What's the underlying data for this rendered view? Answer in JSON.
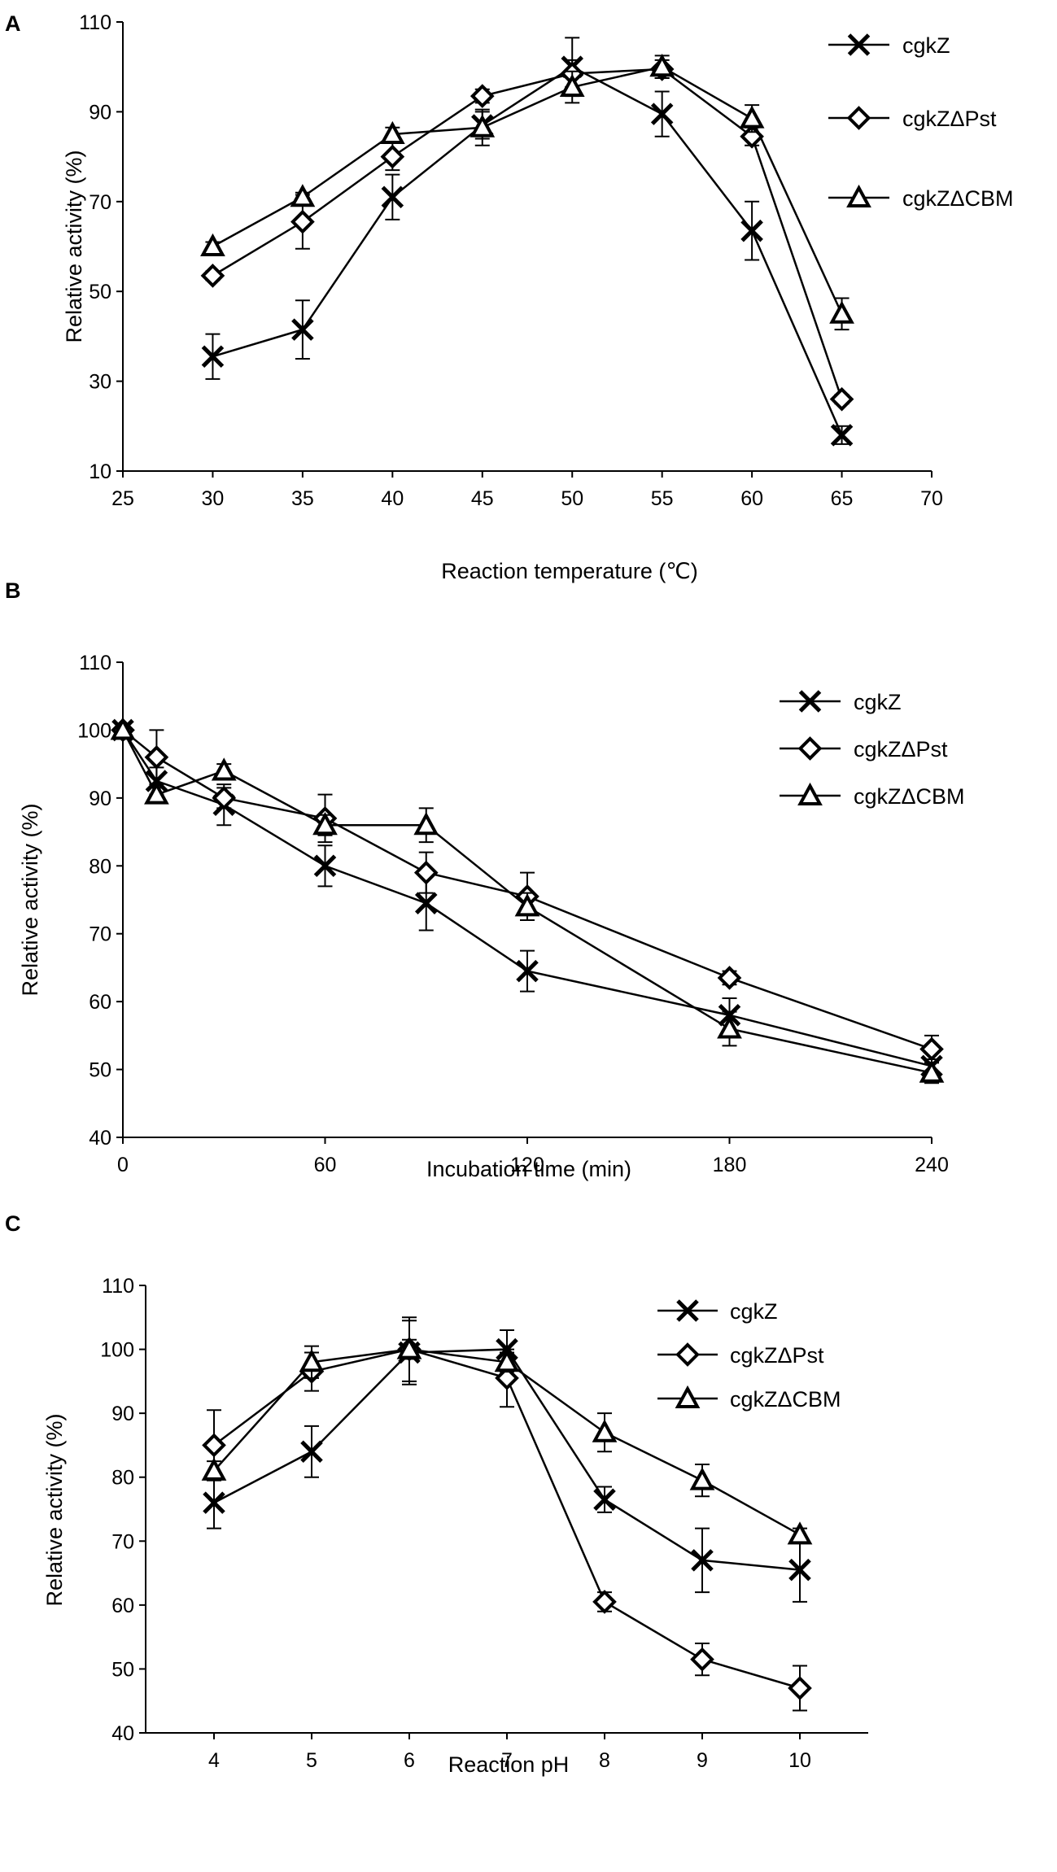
{
  "chart_data": [
    {
      "panel_label": "A",
      "type": "line",
      "title": "",
      "xlabel": "Reaction temperature (℃)",
      "ylabel": "Relative activity (%)",
      "xlim": [
        25,
        70
      ],
      "ylim": [
        10,
        110
      ],
      "xticks": [
        25,
        30,
        35,
        40,
        45,
        50,
        55,
        60,
        65,
        70
      ],
      "yticks": [
        10,
        30,
        50,
        70,
        90,
        110
      ],
      "grid": false,
      "legend_position": "top-right",
      "series": [
        {
          "name": "cgkZ",
          "marker": "x",
          "x": [
            30,
            35,
            40,
            45,
            50,
            55,
            60,
            65
          ],
          "y": [
            35.5,
            41.5,
            71,
            87,
            100,
            89.5,
            63.5,
            18
          ],
          "err": [
            5,
            6.5,
            5,
            3,
            6.5,
            5,
            6.5,
            2
          ]
        },
        {
          "name": "cgkZΔPst",
          "marker": "diamond",
          "x": [
            30,
            35,
            40,
            45,
            50,
            55,
            60,
            65
          ],
          "y": [
            53.5,
            65.5,
            80,
            93.5,
            98.5,
            99.5,
            84.5,
            26
          ],
          "err": [
            1,
            6,
            3,
            1.5,
            3,
            2,
            2,
            1
          ]
        },
        {
          "name": "cgkZΔCBM",
          "marker": "triangle",
          "x": [
            30,
            35,
            40,
            45,
            50,
            55,
            60,
            65
          ],
          "y": [
            60,
            71,
            85,
            86.5,
            95.5,
            100,
            88.5,
            45
          ],
          "err": [
            1,
            1,
            1.5,
            4,
            3.5,
            2.5,
            3,
            3.5
          ]
        }
      ]
    },
    {
      "panel_label": "B",
      "type": "line",
      "title": "",
      "xlabel": "Incubation time (min)",
      "ylabel": "Relative activity (%)",
      "xlim": [
        0,
        240
      ],
      "ylim": [
        40,
        110
      ],
      "xticks": [
        0,
        60,
        120,
        180,
        240
      ],
      "yticks": [
        40,
        50,
        60,
        70,
        80,
        90,
        100,
        110
      ],
      "grid": false,
      "legend_position": "top-right",
      "series": [
        {
          "name": "cgkZ",
          "marker": "x",
          "x": [
            0,
            10,
            30,
            60,
            90,
            120,
            180,
            240
          ],
          "y": [
            100,
            92.5,
            89,
            80,
            74.5,
            64.5,
            58,
            50.5
          ],
          "err": [
            0.5,
            2,
            3,
            3,
            4,
            3,
            2.5,
            1
          ]
        },
        {
          "name": "cgkZΔPst",
          "marker": "diamond",
          "x": [
            0,
            10,
            30,
            60,
            90,
            120,
            180,
            240
          ],
          "y": [
            100,
            96,
            90,
            87,
            79,
            75.5,
            63.5,
            53
          ],
          "err": [
            0.5,
            4,
            1.5,
            3.5,
            3,
            3.5,
            1,
            2
          ]
        },
        {
          "name": "cgkZΔCBM",
          "marker": "triangle",
          "x": [
            0,
            10,
            30,
            60,
            90,
            120,
            180,
            240
          ],
          "y": [
            100,
            90.5,
            94,
            86,
            86,
            74,
            56,
            49.5
          ],
          "err": [
            0.5,
            1,
            1,
            1.5,
            2.5,
            2,
            2.5,
            1.5
          ]
        }
      ]
    },
    {
      "panel_label": "C",
      "type": "line",
      "title": "",
      "xlabel": "Reaction pH",
      "ylabel": "Relative activity (%)",
      "xlim": [
        3.3,
        10.7
      ],
      "ylim": [
        40,
        110
      ],
      "xticks": [
        4,
        5,
        6,
        7,
        8,
        9,
        10
      ],
      "yticks": [
        40,
        50,
        60,
        70,
        80,
        90,
        100,
        110
      ],
      "grid": false,
      "legend_position": "top-right",
      "series": [
        {
          "name": "cgkZ",
          "marker": "x",
          "x": [
            4,
            5,
            6,
            7,
            8,
            9,
            10
          ],
          "y": [
            76,
            84,
            99.5,
            100,
            76.5,
            67,
            65.5
          ],
          "err": [
            4,
            4,
            5,
            3,
            2,
            5,
            5
          ]
        },
        {
          "name": "cgkZΔPst",
          "marker": "diamond",
          "x": [
            4,
            5,
            6,
            7,
            8,
            9,
            10
          ],
          "y": [
            85,
            96.5,
            100,
            95.5,
            60.5,
            51.5,
            47
          ],
          "err": [
            5.5,
            3,
            5,
            4.5,
            1.5,
            2.5,
            3.5
          ]
        },
        {
          "name": "cgkZΔCBM",
          "marker": "triangle",
          "x": [
            4,
            5,
            6,
            7,
            8,
            9,
            10
          ],
          "y": [
            81,
            98,
            100,
            98,
            87,
            79.5,
            71
          ],
          "err": [
            1.5,
            2.5,
            1.5,
            1.5,
            3,
            2.5,
            1
          ]
        }
      ]
    }
  ]
}
